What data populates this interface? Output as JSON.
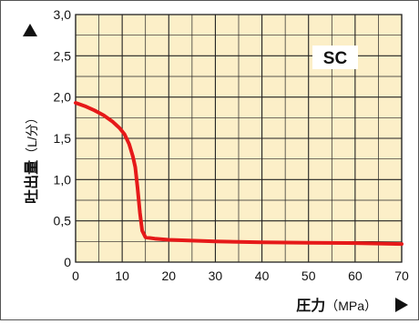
{
  "chart_data": {
    "type": "line",
    "title": "",
    "badge": "SC",
    "ylabel_main": "吐出量",
    "ylabel_unit": "（L/分）",
    "xlabel_main": "圧力",
    "xlabel_unit": "（MPa）",
    "xlim": [
      0,
      70
    ],
    "ylim": [
      0,
      3.0
    ],
    "x_ticks": [
      0,
      10,
      20,
      30,
      40,
      50,
      60,
      70
    ],
    "x_tick_labels": [
      "0",
      "10",
      "20",
      "30",
      "40",
      "50",
      "60",
      "70"
    ],
    "y_ticks": [
      0,
      0.5,
      1.0,
      1.5,
      2.0,
      2.5,
      3.0
    ],
    "y_tick_labels": [
      "0",
      "0,5",
      "1,0",
      "1,5",
      "2,0",
      "2,5",
      "3,0"
    ],
    "grid": true,
    "x_minor_step": 5,
    "y_minor_step": 0.25,
    "series": [
      {
        "name": "",
        "color": "#e61919",
        "points": [
          [
            0,
            1.93
          ],
          [
            2,
            1.89
          ],
          [
            4,
            1.84
          ],
          [
            6,
            1.78
          ],
          [
            8,
            1.7
          ],
          [
            9.5,
            1.62
          ],
          [
            10.5,
            1.55
          ],
          [
            11.5,
            1.43
          ],
          [
            12.3,
            1.28
          ],
          [
            12.8,
            1.15
          ],
          [
            13.3,
            0.9
          ],
          [
            13.8,
            0.6
          ],
          [
            14.3,
            0.38
          ],
          [
            15,
            0.3
          ],
          [
            17,
            0.285
          ],
          [
            20,
            0.27
          ],
          [
            25,
            0.26
          ],
          [
            30,
            0.25
          ],
          [
            40,
            0.24
          ],
          [
            50,
            0.235
          ],
          [
            60,
            0.23
          ],
          [
            70,
            0.22
          ]
        ]
      }
    ],
    "colors": {
      "plot_background": "#fcefc8",
      "grid_line": "#222222",
      "axis_text": "#111111"
    }
  }
}
